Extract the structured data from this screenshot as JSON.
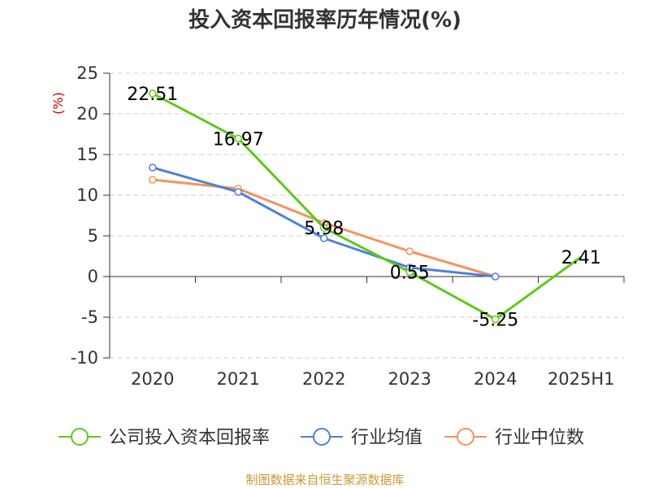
{
  "chart_data": {
    "type": "line",
    "title": "投入资本回报率历年情况(%)",
    "ylabel": "(%)",
    "ylim": [
      -10,
      25
    ],
    "yticks": [
      25,
      20,
      15,
      10,
      5,
      0,
      -5,
      -10
    ],
    "categories": [
      "2020",
      "2021",
      "2022",
      "2023",
      "2024",
      "2025H1"
    ],
    "grid": true,
    "legend_position": "bottom",
    "source": "制图数据来自恒生聚源数据库",
    "series": [
      {
        "name": "公司投入资本回报率",
        "color": "#5ec91a",
        "values": [
          22.51,
          16.97,
          5.98,
          0.55,
          -5.25,
          2.41
        ],
        "labels": [
          "22.51",
          "16.97",
          "5.98",
          "0.55",
          "-5.25",
          "2.41"
        ]
      },
      {
        "name": "行业均值",
        "color": "#4f81d8",
        "values": [
          13.4,
          10.4,
          4.7,
          1.1,
          0.0,
          null
        ]
      },
      {
        "name": "行业中位数",
        "color": "#f7915c",
        "values": [
          11.9,
          10.8,
          6.6,
          3.1,
          0.0,
          null
        ]
      }
    ],
    "colors": {
      "ylabel": "#cc0000",
      "source": "#c99a3a",
      "axis": "#333333",
      "grid": "#cccccc"
    }
  }
}
